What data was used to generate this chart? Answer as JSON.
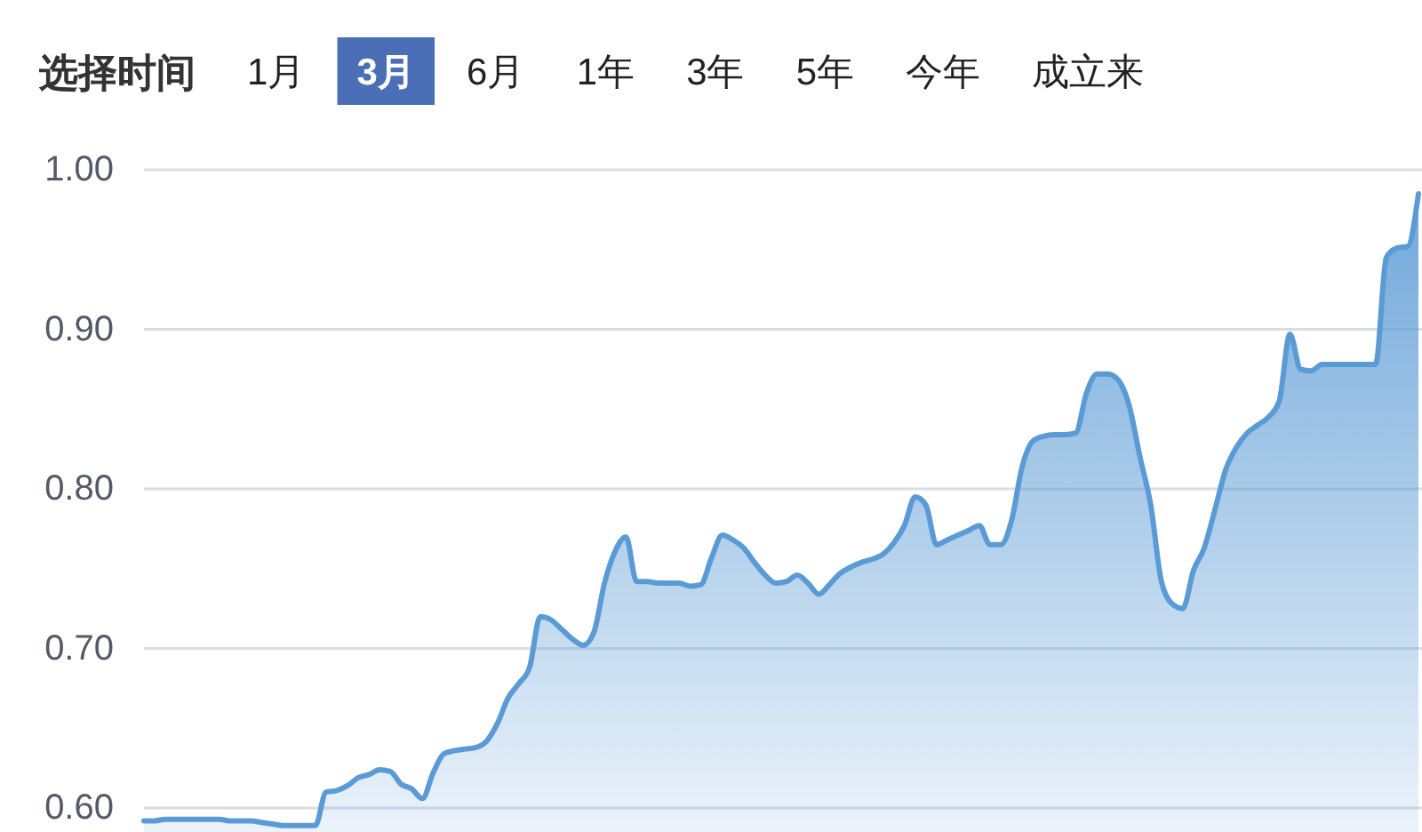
{
  "chart_data": {
    "type": "area",
    "annotations": [
      "选择时间",
      "1月",
      "3月",
      "6月",
      "1年",
      "3年",
      "5年",
      "今年",
      "成立来"
    ],
    "categories": [
      null,
      null,
      null,
      null,
      null,
      null,
      null,
      null,
      null,
      null,
      null,
      null,
      null,
      null,
      null,
      null,
      null,
      null,
      null,
      null,
      null,
      null,
      null,
      null,
      null,
      null,
      null,
      null,
      null,
      null,
      null,
      null,
      null,
      null,
      null,
      null,
      null,
      null,
      null,
      null,
      null,
      null,
      null,
      null,
      null,
      null,
      null,
      null,
      null,
      null,
      null,
      null,
      null,
      null,
      null,
      null,
      null,
      null,
      null,
      null,
      null,
      null,
      null,
      null,
      null,
      null,
      null,
      null,
      null,
      null,
      null,
      null,
      null,
      null,
      null,
      null,
      null,
      null,
      null,
      null,
      null,
      null,
      null,
      null,
      null,
      null,
      null,
      null,
      null,
      null,
      null,
      null,
      null,
      null,
      null,
      null,
      null,
      null,
      null,
      null,
      null,
      null,
      null,
      null,
      null,
      null,
      null,
      null,
      null,
      null,
      null,
      null,
      null,
      null,
      null,
      null,
      null,
      null,
      null,
      null
    ],
    "series": [
      {
        "color": "#5b9bd5",
        "values": [
          0.592,
          0.592,
          0.593,
          0.593,
          0.593,
          0.593,
          0.593,
          0.593,
          0.592,
          0.592,
          0.592,
          0.591,
          0.59,
          0.589,
          0.589,
          0.589,
          0.589,
          0.61,
          0.611,
          0.614,
          0.619,
          0.621,
          0.624,
          0.623,
          0.615,
          0.612,
          0.606,
          0.622,
          0.634,
          0.636,
          0.637,
          0.638,
          0.642,
          0.653,
          0.669,
          0.678,
          0.688,
          0.72,
          0.718,
          0.712,
          0.706,
          0.702,
          0.71,
          0.741,
          0.761,
          0.77,
          0.742,
          0.742,
          0.741,
          0.741,
          0.741,
          0.739,
          0.74,
          0.757,
          0.771,
          0.768,
          0.763,
          0.754,
          0.746,
          0.741,
          0.742,
          0.746,
          0.741,
          0.734,
          0.74,
          0.747,
          0.751,
          0.754,
          0.756,
          0.759,
          0.766,
          0.777,
          0.795,
          0.79,
          0.765,
          0.768,
          0.771,
          0.774,
          0.777,
          0.765,
          0.765,
          0.78,
          0.814,
          0.83,
          0.833,
          0.834,
          0.834,
          0.835,
          0.86,
          0.872,
          0.872,
          0.868,
          0.852,
          0.82,
          0.79,
          0.742,
          0.728,
          0.725,
          0.749,
          0.763,
          0.787,
          0.812,
          0.826,
          0.835,
          0.84,
          0.845,
          0.855,
          0.897,
          0.875,
          0.874,
          0.878,
          0.878,
          0.878,
          0.878,
          0.878,
          0.878,
          0.945,
          0.951,
          0.952,
          0.985
        ]
      }
    ],
    "ylim": [
      0.585,
      1.0
    ],
    "yticks": [
      {
        "value": 0.6,
        "label": "0.60"
      },
      {
        "value": 0.7,
        "label": "0.70"
      },
      {
        "value": 0.8,
        "label": "0.80"
      },
      {
        "value": 0.9,
        "label": "0.90"
      },
      {
        "value": 1.0,
        "label": "1.00"
      }
    ],
    "grid": "y",
    "tick_labels": "y"
  }
}
